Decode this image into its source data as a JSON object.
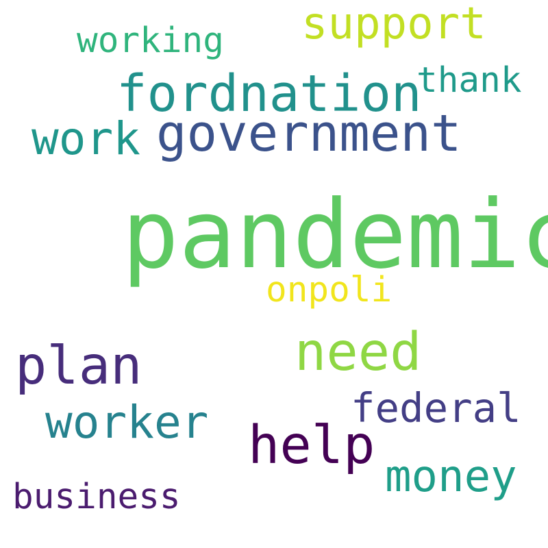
{
  "words": {
    "pandemic": {
      "text": "pandemic",
      "color": "#5ec962"
    },
    "fordnation": {
      "text": "fordnation",
      "color": "#21918c"
    },
    "government": {
      "text": "government",
      "color": "#3b528b"
    },
    "support": {
      "text": "support",
      "color": "#c2df23"
    },
    "working": {
      "text": "working",
      "color": "#2fb47c"
    },
    "thank": {
      "text": "thank",
      "color": "#1f9a8a"
    },
    "work": {
      "text": "work",
      "color": "#1f968b"
    },
    "onpoli": {
      "text": "onpoli",
      "color": "#f1e51d"
    },
    "need": {
      "text": "need",
      "color": "#8fd744"
    },
    "plan": {
      "text": "plan",
      "color": "#472d7b"
    },
    "worker": {
      "text": "worker",
      "color": "#26828e"
    },
    "help": {
      "text": "help",
      "color": "#440154"
    },
    "federal": {
      "text": "federal",
      "color": "#433e85"
    },
    "money": {
      "text": "money",
      "color": "#1f9e89"
    },
    "business": {
      "text": "business",
      "color": "#4b1c6f"
    }
  }
}
